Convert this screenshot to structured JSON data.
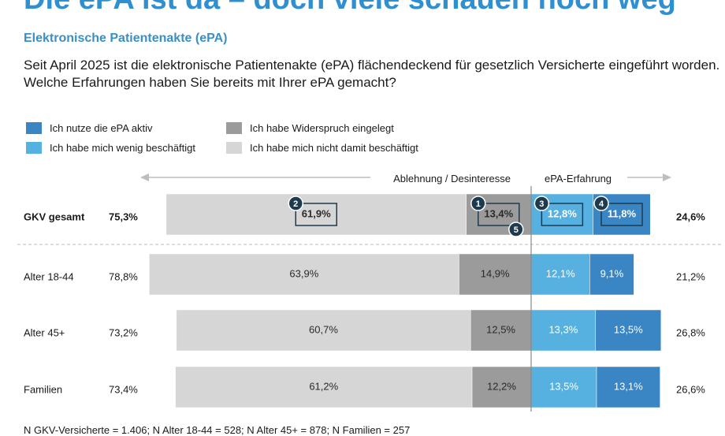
{
  "headline": "Die ePA ist da – doch viele schauen noch weg",
  "subtitle": "Elektronische Patientenakte (ePA)",
  "question": "Seit April 2025 ist die elektronische Patientenakte (ePA) flächendeckend für gesetzlich Versicherte eingeführt worden. Welche Erfahrungen haben Sie bereits mit Ihrer ePA gemacht?",
  "colors": {
    "aktiv": "#3a85c4",
    "wenig": "#56b0e0",
    "widerspruch": "#9b9b9b",
    "nicht": "#d6d6d6",
    "text_dark": "#1f3a4d",
    "axis": "#bdbdbd"
  },
  "legend": [
    {
      "key": "aktiv",
      "label": "Ich nutze die ePA aktiv"
    },
    {
      "key": "widerspruch",
      "label": "Ich habe Widerspruch eingelegt"
    },
    {
      "key": "wenig",
      "label": "Ich habe mich wenig beschäftigt"
    },
    {
      "key": "nicht",
      "label": "Ich habe mich nicht damit beschäftigt"
    }
  ],
  "arrows": {
    "left": "Ablehnung / Desinteresse",
    "right": "ePA-Erfahrung"
  },
  "footnote": "N GKV-Versicherte = 1.406; N Alter 18-44 = 528; N Alter 45+ = 878; N Familien = 257",
  "chart_data": {
    "type": "bar",
    "orientation": "horizontal-diverging",
    "categories": [
      "GKV gesamt",
      "Alter 18-44",
      "Alter 45+",
      "Familien"
    ],
    "series": [
      {
        "name": "Ich habe mich nicht damit beschäftigt",
        "key": "nicht",
        "side": "negative",
        "values": [
          61.9,
          63.9,
          60.7,
          61.2
        ],
        "labels": [
          "61,9%",
          "63,9%",
          "60,7%",
          "61,2%"
        ]
      },
      {
        "name": "Ich habe Widerspruch eingelegt",
        "key": "widerspruch",
        "side": "negative",
        "values": [
          13.4,
          14.9,
          12.5,
          12.2
        ],
        "labels": [
          "13,4%",
          "14,9%",
          "12,5%",
          "12,2%"
        ]
      },
      {
        "name": "Ich habe mich wenig beschäftigt",
        "key": "wenig",
        "side": "positive",
        "values": [
          12.8,
          12.1,
          13.3,
          13.5
        ],
        "labels": [
          "12,8%",
          "12,1%",
          "13,3%",
          "13,5%"
        ]
      },
      {
        "name": "Ich nutze die ePA aktiv",
        "key": "aktiv",
        "side": "positive",
        "values": [
          11.8,
          9.1,
          13.5,
          13.1
        ],
        "labels": [
          "11,8%",
          "9,1%",
          "13,5%",
          "13,1%"
        ]
      }
    ],
    "left_totals": [
      "75,3%",
      "78,8%",
      "73,2%",
      "73,4%"
    ],
    "right_totals": [
      "24,6%",
      "21,2%",
      "26,8%",
      "26,6%"
    ],
    "highlight_row": 0,
    "badges": [
      {
        "number": "2",
        "series_key": "nicht"
      },
      {
        "number": "1",
        "series_key": "widerspruch"
      },
      {
        "number": "5",
        "series_key": "widerspruch"
      },
      {
        "number": "3",
        "series_key": "wenig"
      },
      {
        "number": "4",
        "series_key": "aktiv"
      }
    ]
  }
}
